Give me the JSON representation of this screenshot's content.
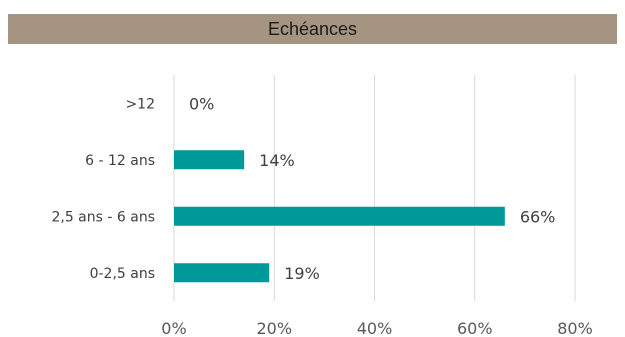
{
  "chart_data": {
    "type": "bar",
    "orientation": "horizontal",
    "title": "Echéances",
    "categories": [
      ">12",
      "6 - 12 ans",
      "2,5 ans - 6  ans",
      "0-2,5 ans"
    ],
    "values": [
      0,
      14,
      66,
      19
    ],
    "value_labels": [
      "0%",
      "14%",
      "66%",
      "19%"
    ],
    "xlim": [
      0,
      80
    ],
    "xticks": [
      0,
      20,
      40,
      60,
      80
    ],
    "xtick_labels": [
      "0%",
      "20%",
      "40%",
      "60%",
      "80%"
    ],
    "grid": "vertical",
    "bar_color": "#009999",
    "title_bg": "#a59481"
  }
}
